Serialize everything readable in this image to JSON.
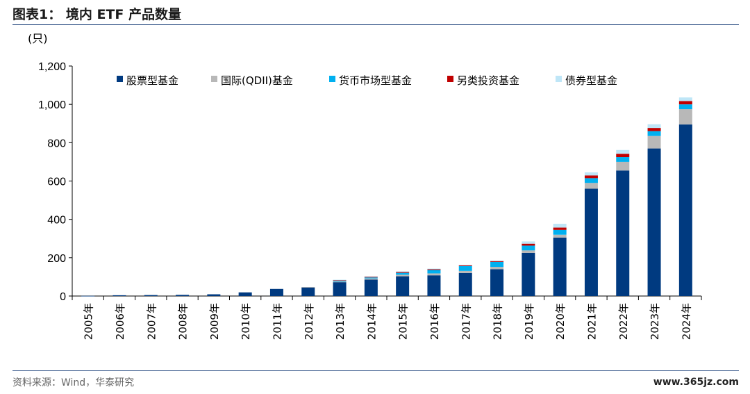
{
  "header": {
    "title": "图表1： 境内 ETF 产品数量"
  },
  "footer": {
    "source": "资料来源：Wind，华泰研究",
    "watermark": "www.365jz.com"
  },
  "chart_data": {
    "type": "bar",
    "stacked": true,
    "unit_label": "(只)",
    "ylim": [
      0,
      1200
    ],
    "yticks": [
      "0",
      "200",
      "400",
      "600",
      "800",
      "1,000",
      "1,200"
    ],
    "ytick_values": [
      0,
      200,
      400,
      600,
      800,
      1000,
      1200
    ],
    "grid": false,
    "legend_position": "top",
    "categories": [
      "2005年",
      "2006年",
      "2007年",
      "2008年",
      "2009年",
      "2010年",
      "2011年",
      "2012年",
      "2013年",
      "2014年",
      "2015年",
      "2016年",
      "2017年",
      "2018年",
      "2019年",
      "2020年",
      "2021年",
      "2022年",
      "2023年",
      "2024年"
    ],
    "series": [
      {
        "name": "股票型基金",
        "color": "#003a80",
        "values": [
          1,
          4,
          5,
          6,
          9,
          19,
          37,
          45,
          72,
          86,
          103,
          108,
          120,
          140,
          225,
          305,
          560,
          655,
          770,
          895
        ]
      },
      {
        "name": "国际(QDII)基金",
        "color": "#b8b8b8",
        "values": [
          0,
          0,
          0,
          0,
          0,
          0,
          0,
          2,
          4,
          6,
          8,
          10,
          11,
          12,
          13,
          15,
          30,
          45,
          65,
          80
        ]
      },
      {
        "name": "货币市场型基金",
        "color": "#00b0f0",
        "values": [
          0,
          0,
          0,
          0,
          0,
          0,
          0,
          0,
          5,
          5,
          10,
          18,
          25,
          26,
          25,
          25,
          25,
          25,
          25,
          25
        ]
      },
      {
        "name": "另类投资基金",
        "color": "#c00000",
        "values": [
          0,
          0,
          0,
          0,
          0,
          0,
          0,
          0,
          2,
          3,
          4,
          4,
          4,
          4,
          10,
          12,
          14,
          17,
          17,
          17
        ]
      },
      {
        "name": "债券型基金",
        "color": "#bfe6f7",
        "values": [
          0,
          0,
          0,
          0,
          0,
          0,
          0,
          0,
          2,
          3,
          4,
          3,
          3,
          4,
          12,
          20,
          16,
          20,
          19,
          19
        ]
      }
    ]
  }
}
